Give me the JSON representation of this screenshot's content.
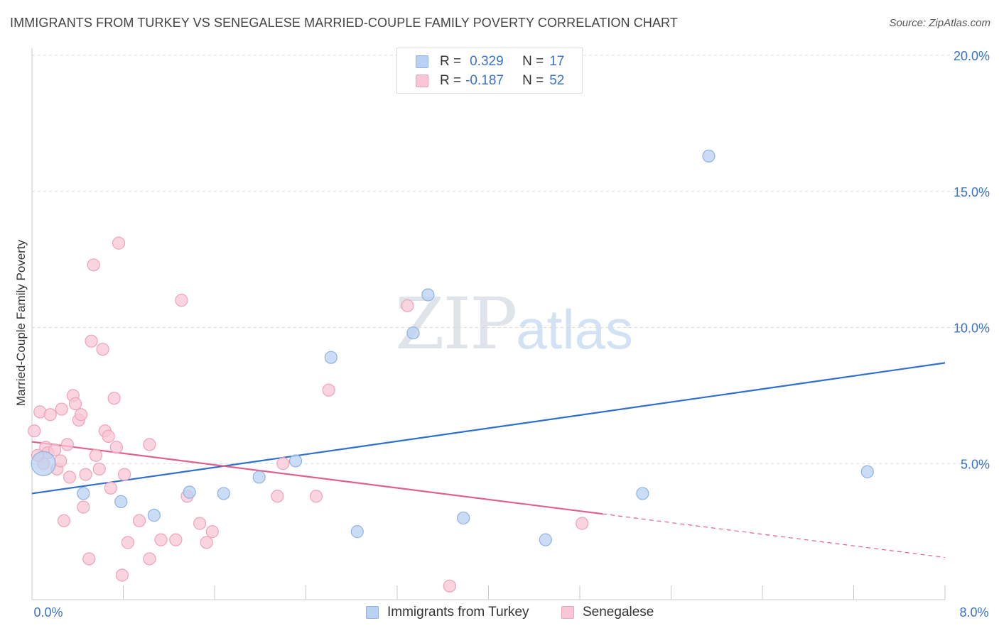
{
  "header": {
    "title": "IMMIGRANTS FROM TURKEY VS SENEGALESE MARRIED-COUPLE FAMILY POVERTY CORRELATION CHART",
    "source": "Source: ZipAtlas.com"
  },
  "watermark": {
    "zip": "ZIP",
    "atlas": "atlas"
  },
  "legend": {
    "rows": [
      {
        "r_label": "R =",
        "r_value": "0.329",
        "n_label": "N =",
        "n_value": "17"
      },
      {
        "r_label": "R =",
        "r_value": "-0.187",
        "n_label": "N =",
        "n_value": "52"
      }
    ]
  },
  "colors": {
    "blue_fill": "#b9d2f3",
    "blue_stroke": "#8fb2e0",
    "blue_line": "#2e6fd0",
    "pink_fill": "#f8c6d4",
    "pink_stroke": "#eda3b8",
    "pink_line": "#e0608c",
    "axis_text": "#3a72c8",
    "grid": "#d9d9d9"
  },
  "chart_data": {
    "type": "scatter",
    "title": "IMMIGRANTS FROM TURKEY VS SENEGALESE MARRIED-COUPLE FAMILY POVERTY CORRELATION CHART",
    "xlabel": "",
    "ylabel": "Married-Couple Family Poverty",
    "xlim": [
      0,
      8
    ],
    "ylim": [
      0,
      20
    ],
    "x_tick_labels": [
      "0.0%",
      "8.0%"
    ],
    "y_ticks": [
      5,
      10,
      15,
      20
    ],
    "y_tick_labels": [
      "5.0%",
      "10.0%",
      "15.0%",
      "20.0%"
    ],
    "legend_position": "bottom",
    "series": [
      {
        "name": "Immigrants from Turkey",
        "r": 0.329,
        "n": 17,
        "points": [
          {
            "x": 0.1,
            "y": 5.0,
            "big": true
          },
          {
            "x": 0.45,
            "y": 3.9
          },
          {
            "x": 0.78,
            "y": 3.6
          },
          {
            "x": 1.07,
            "y": 3.1
          },
          {
            "x": 1.38,
            "y": 3.95
          },
          {
            "x": 1.68,
            "y": 3.9
          },
          {
            "x": 1.99,
            "y": 4.5
          },
          {
            "x": 2.31,
            "y": 5.1
          },
          {
            "x": 2.62,
            "y": 8.9
          },
          {
            "x": 2.85,
            "y": 2.5
          },
          {
            "x": 3.34,
            "y": 9.8
          },
          {
            "x": 3.47,
            "y": 11.2
          },
          {
            "x": 3.78,
            "y": 3.0
          },
          {
            "x": 4.5,
            "y": 2.2
          },
          {
            "x": 5.35,
            "y": 3.9
          },
          {
            "x": 5.93,
            "y": 16.3
          },
          {
            "x": 7.32,
            "y": 4.7
          }
        ],
        "trend": {
          "x0": 0,
          "y0": 3.9,
          "x1": 8,
          "y1": 8.7
        }
      },
      {
        "name": "Senegalese",
        "r": -0.187,
        "n": 52,
        "points": [
          {
            "x": 0.02,
            "y": 6.2
          },
          {
            "x": 0.07,
            "y": 6.9
          },
          {
            "x": 0.1,
            "y": 5.0
          },
          {
            "x": 0.12,
            "y": 5.6
          },
          {
            "x": 0.14,
            "y": 5.4
          },
          {
            "x": 0.16,
            "y": 6.8
          },
          {
            "x": 0.2,
            "y": 5.5
          },
          {
            "x": 0.22,
            "y": 4.8
          },
          {
            "x": 0.25,
            "y": 5.1
          },
          {
            "x": 0.26,
            "y": 7.0
          },
          {
            "x": 0.28,
            "y": 2.9
          },
          {
            "x": 0.31,
            "y": 5.7
          },
          {
            "x": 0.33,
            "y": 4.5
          },
          {
            "x": 0.36,
            "y": 7.5
          },
          {
            "x": 0.38,
            "y": 7.2
          },
          {
            "x": 0.41,
            "y": 6.6
          },
          {
            "x": 0.43,
            "y": 6.8
          },
          {
            "x": 0.45,
            "y": 3.4
          },
          {
            "x": 0.47,
            "y": 4.6
          },
          {
            "x": 0.5,
            "y": 1.5
          },
          {
            "x": 0.52,
            "y": 9.5
          },
          {
            "x": 0.54,
            "y": 12.3
          },
          {
            "x": 0.56,
            "y": 5.3
          },
          {
            "x": 0.59,
            "y": 4.8
          },
          {
            "x": 0.62,
            "y": 9.2
          },
          {
            "x": 0.64,
            "y": 6.2
          },
          {
            "x": 0.67,
            "y": 6.0
          },
          {
            "x": 0.69,
            "y": 4.1
          },
          {
            "x": 0.72,
            "y": 7.4
          },
          {
            "x": 0.74,
            "y": 5.6
          },
          {
            "x": 0.76,
            "y": 13.1
          },
          {
            "x": 0.79,
            "y": 0.9
          },
          {
            "x": 0.81,
            "y": 4.6
          },
          {
            "x": 0.84,
            "y": 2.1
          },
          {
            "x": 0.94,
            "y": 2.9
          },
          {
            "x": 1.03,
            "y": 5.7
          },
          {
            "x": 1.03,
            "y": 1.5
          },
          {
            "x": 1.13,
            "y": 2.2
          },
          {
            "x": 1.26,
            "y": 2.2
          },
          {
            "x": 1.31,
            "y": 11.0
          },
          {
            "x": 1.36,
            "y": 3.8
          },
          {
            "x": 1.47,
            "y": 2.8
          },
          {
            "x": 1.53,
            "y": 2.1
          },
          {
            "x": 1.58,
            "y": 2.5
          },
          {
            "x": 2.15,
            "y": 3.8
          },
          {
            "x": 2.2,
            "y": 5.0
          },
          {
            "x": 2.49,
            "y": 3.8
          },
          {
            "x": 2.6,
            "y": 7.7
          },
          {
            "x": 3.29,
            "y": 10.8
          },
          {
            "x": 3.66,
            "y": 0.5
          },
          {
            "x": 4.82,
            "y": 2.8
          },
          {
            "x": 0.05,
            "y": 5.3
          }
        ],
        "trend": {
          "x0": 0,
          "y0": 5.8,
          "x1": 5.0,
          "y1": 3.15
        },
        "trend_dashed": {
          "x0": 5.0,
          "y0": 3.15,
          "x1": 8,
          "y1": 1.55
        }
      }
    ]
  },
  "bottom_legend": {
    "items": [
      {
        "label": "Immigrants from Turkey"
      },
      {
        "label": "Senegalese"
      }
    ]
  }
}
